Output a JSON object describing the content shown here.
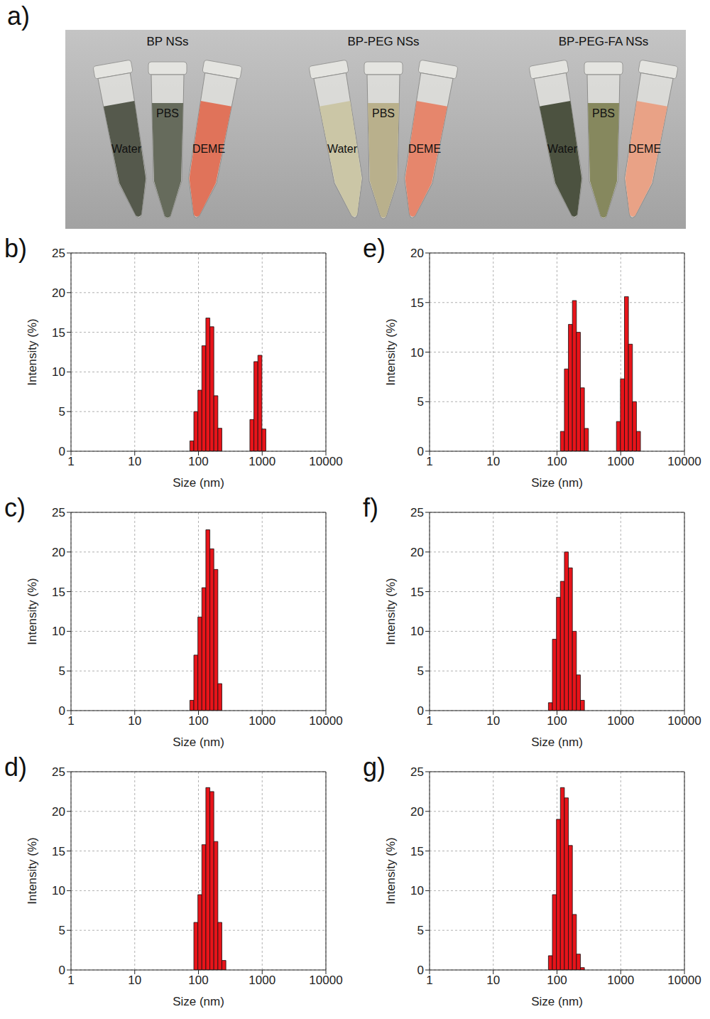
{
  "panel_a": {
    "panel": "a)",
    "groups": [
      {
        "title": "BP NSs",
        "tubes": [
          "Water",
          "PBS",
          "DEME"
        ]
      },
      {
        "title": "BP-PEG NSs",
        "tubes": [
          "Water",
          "PBS",
          "DEME"
        ]
      },
      {
        "title": "BP-PEG-FA NSs",
        "tubes": [
          "Water",
          "PBS",
          "DEME"
        ]
      }
    ]
  },
  "chart_data": [
    {
      "panel": "b)",
      "type": "histogram",
      "x_label": "Size (nm)",
      "y_label": "Intensity (%)",
      "bins": [
        73.3,
        84.7,
        97.9,
        113.1,
        130.7,
        151.0,
        174.5,
        201.7,
        233.1,
        269.4,
        311.3,
        359.7,
        415.7,
        480.4,
        555.1,
        641.5,
        741.3,
        856.7,
        990.0,
        1144,
        1322,
        1528,
        1766,
        2041
      ],
      "values": [
        1.3,
        5,
        7.7,
        13.3,
        16.8,
        15.7,
        7,
        2.9,
        0,
        0,
        0,
        0,
        0,
        0,
        0,
        4,
        11.3,
        12.1,
        2.8,
        0,
        0,
        0,
        0
      ],
      "color": "#e8141a",
      "xlim": [
        1,
        10000
      ],
      "xticks": [
        1,
        10,
        100,
        1000,
        10000
      ],
      "ylim": [
        0,
        25
      ],
      "yticks": [
        0,
        5,
        10,
        15,
        20,
        25
      ],
      "log": "x",
      "grid": true
    },
    {
      "panel": "e)",
      "type": "histogram",
      "x_label": "Size (nm)",
      "y_label": "Intensity (%)",
      "bins": [
        73.3,
        84.7,
        97.9,
        113.1,
        130.7,
        151.0,
        174.5,
        201.7,
        233.1,
        269.4,
        311.3,
        359.7,
        415.7,
        480.4,
        555.1,
        641.5,
        741.3,
        856.7,
        990.0,
        1144,
        1322,
        1528,
        1766,
        2041
      ],
      "values": [
        0,
        0,
        0,
        2,
        8.3,
        12.8,
        15.2,
        12,
        6.4,
        2.3,
        0,
        0,
        0,
        0,
        0,
        0,
        0,
        3,
        7.3,
        15.6,
        10.8,
        5,
        2
      ],
      "color": "#e8141a",
      "xlim": [
        1,
        10000
      ],
      "xticks": [
        1,
        10,
        100,
        1000,
        10000
      ],
      "ylim": [
        0,
        20
      ],
      "yticks": [
        0,
        5,
        10,
        15,
        20
      ],
      "log": "x",
      "grid": true
    },
    {
      "panel": "c)",
      "type": "histogram",
      "x_label": "Size (nm)",
      "y_label": "Intensity (%)",
      "bins": [
        73.3,
        84.7,
        97.9,
        113.1,
        130.7,
        151.0,
        174.5,
        201.7,
        233.1,
        269.4,
        311.3,
        359.7,
        415.7,
        480.4,
        555.1,
        641.5,
        741.3,
        856.7,
        990.0,
        1144,
        1322,
        1528,
        1766,
        2041
      ],
      "values": [
        1.3,
        7,
        11.8,
        15.5,
        22.8,
        20.4,
        17.8,
        3.4,
        0,
        0,
        0,
        0,
        0,
        0,
        0,
        0,
        0,
        0,
        0,
        0,
        0,
        0,
        0
      ],
      "color": "#e8141a",
      "xlim": [
        1,
        10000
      ],
      "xticks": [
        1,
        10,
        100,
        1000,
        10000
      ],
      "ylim": [
        0,
        25
      ],
      "yticks": [
        0,
        5,
        10,
        15,
        20,
        25
      ],
      "log": "x",
      "grid": true
    },
    {
      "panel": "f)",
      "type": "histogram",
      "x_label": "Size (nm)",
      "y_label": "Intensity (%)",
      "bins": [
        73.3,
        84.7,
        97.9,
        113.1,
        130.7,
        151.0,
        174.5,
        201.7,
        233.1,
        269.4,
        311.3,
        359.7,
        415.7,
        480.4,
        555.1,
        641.5,
        741.3,
        856.7,
        990.0,
        1144,
        1322,
        1528,
        1766,
        2041
      ],
      "values": [
        1,
        9,
        14.3,
        16.3,
        20,
        18,
        10,
        4.5,
        1.3,
        0,
        0,
        0,
        0,
        0,
        0,
        0,
        0,
        0,
        0,
        0,
        0,
        0,
        0
      ],
      "color": "#e8141a",
      "xlim": [
        1,
        10000
      ],
      "xticks": [
        1,
        10,
        100,
        1000,
        10000
      ],
      "ylim": [
        0,
        25
      ],
      "yticks": [
        0,
        5,
        10,
        15,
        20,
        25
      ],
      "log": "x",
      "grid": true
    },
    {
      "panel": "d)",
      "type": "histogram",
      "x_label": "Size (nm)",
      "y_label": "Intensity (%)",
      "bins": [
        73.3,
        84.7,
        97.9,
        113.1,
        130.7,
        151.0,
        174.5,
        201.7,
        233.1,
        269.4,
        311.3,
        359.7,
        415.7,
        480.4,
        555.1,
        641.5,
        741.3,
        856.7,
        990.0,
        1144,
        1322,
        1528,
        1766,
        2041
      ],
      "values": [
        0,
        6,
        9.5,
        15.8,
        23,
        22.5,
        16.2,
        6,
        1.2,
        0,
        0,
        0,
        0,
        0,
        0,
        0,
        0,
        0,
        0,
        0,
        0,
        0,
        0
      ],
      "color": "#e8141a",
      "xlim": [
        1,
        10000
      ],
      "xticks": [
        1,
        10,
        100,
        1000,
        10000
      ],
      "ylim": [
        0,
        25
      ],
      "yticks": [
        0,
        5,
        10,
        15,
        20,
        25
      ],
      "log": "x",
      "grid": true
    },
    {
      "panel": "g)",
      "type": "histogram",
      "x_label": "Size (nm)",
      "y_label": "Intensity (%)",
      "bins": [
        73.3,
        84.7,
        97.9,
        113.1,
        130.7,
        151.0,
        174.5,
        201.7,
        233.1,
        269.4,
        311.3,
        359.7,
        415.7,
        480.4,
        555.1,
        641.5,
        741.3,
        856.7,
        990.0,
        1144,
        1322,
        1528,
        1766,
        2041
      ],
      "values": [
        1.8,
        9.5,
        19,
        23,
        21.7,
        15.7,
        7,
        2,
        0.3,
        0,
        0,
        0,
        0,
        0,
        0,
        0,
        0,
        0,
        0,
        0,
        0,
        0,
        0
      ],
      "color": "#e8141a",
      "xlim": [
        1,
        10000
      ],
      "xticks": [
        1,
        10,
        100,
        1000,
        10000
      ],
      "ylim": [
        0,
        25
      ],
      "yticks": [
        0,
        5,
        10,
        15,
        20,
        25
      ],
      "log": "x",
      "grid": true
    }
  ]
}
